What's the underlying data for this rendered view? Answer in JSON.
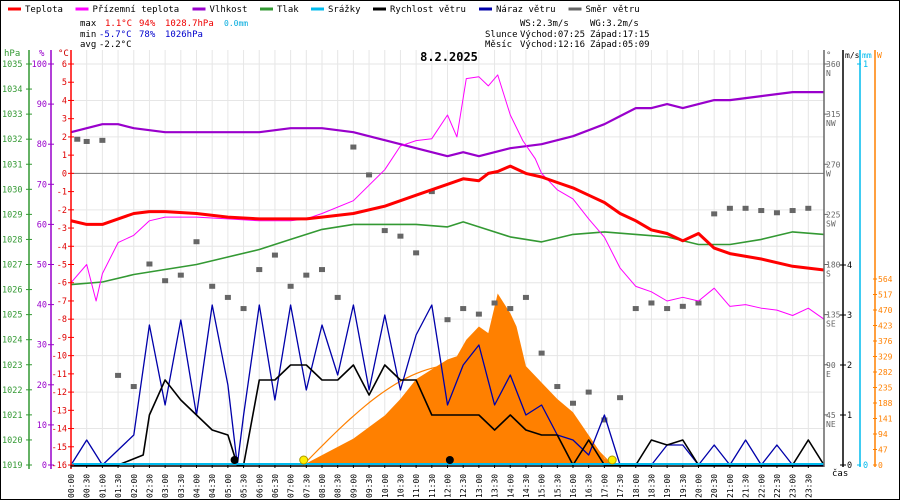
{
  "legend": [
    {
      "label": "Teplota",
      "color": "#ff0000"
    },
    {
      "label": "Přízemní teplota",
      "color": "#ff00ff"
    },
    {
      "label": "Vlhkost",
      "color": "#9900cc"
    },
    {
      "label": "Tlak",
      "color": "#339933"
    },
    {
      "label": "Srážky",
      "color": "#00bbee"
    },
    {
      "label": "Rychlost větru",
      "color": "#000000"
    },
    {
      "label": "Náraz větru",
      "color": "#0000aa"
    },
    {
      "label": "Směr větru",
      "color": "#666666"
    }
  ],
  "stats": {
    "max_label": "max",
    "max_temp": "1.1°C",
    "max_hum": "94%",
    "max_press": "1028.7hPa",
    "max_rain": "0.0mm",
    "min_label": "min",
    "min_temp": "-5.7°C",
    "min_hum": "78%",
    "min_press": "1026hPa",
    "avg_label": "avg",
    "avg_temp": "-2.2°C"
  },
  "wind_info": {
    "ws": "WS:2.3m/s",
    "wg": "WG:3.2m/s"
  },
  "sun": {
    "label": "Slunce",
    "rise": "Východ:07:25",
    "set": "Západ:17:15"
  },
  "moon": {
    "label": "Měsíc",
    "rise": "Východ:12:16",
    "set": "Západ:05:09"
  },
  "colors": {
    "temp": "#ff0000",
    "feels": "#ff00ff",
    "hum": "#9900cc",
    "press": "#339933",
    "rain": "#00bbee",
    "wind": "#000000",
    "gust": "#0000aa",
    "dir": "#666666",
    "solar": "#ff8000",
    "grid": "#e6e6e6"
  },
  "chart_data": {
    "type": "line",
    "title": "8.2.2025",
    "xlabel": "čas",
    "x_ticks": [
      "00:00",
      "00:30",
      "01:00",
      "01:30",
      "02:00",
      "02:30",
      "03:00",
      "03:30",
      "04:00",
      "04:30",
      "05:00",
      "05:30",
      "06:00",
      "06:30",
      "07:00",
      "07:30",
      "08:00",
      "08:30",
      "09:00",
      "09:30",
      "10:00",
      "10:30",
      "11:00",
      "11:30",
      "12:00",
      "12:30",
      "13:00",
      "13:30",
      "14:00",
      "14:30",
      "15:00",
      "15:30",
      "16:00",
      "16:30",
      "17:00",
      "17:30",
      "18:00",
      "18:30",
      "19:00",
      "19:30",
      "20:00",
      "20:30",
      "21:00",
      "21:30",
      "22:00",
      "22:30",
      "23:00",
      "23:30"
    ],
    "axes": {
      "pressure": {
        "unit": "hPa",
        "range": [
          1019,
          1035
        ],
        "ticks": [
          "1035",
          "1034",
          "1033",
          "1032",
          "1031",
          "1030",
          "1029",
          "1028",
          "1027",
          "1026",
          "1025",
          "1024",
          "1023",
          "1022",
          "1021",
          "1020",
          "1019"
        ]
      },
      "humidity": {
        "unit": "%",
        "range": [
          0,
          100
        ],
        "ticks": [
          "100",
          "90",
          "80",
          "70",
          "60",
          "50",
          "40",
          "30",
          "20",
          "10",
          "0"
        ]
      },
      "temperature": {
        "unit": "°C",
        "range": [
          -16,
          6
        ],
        "ticks": [
          "6",
          "5",
          "4",
          "3",
          "2",
          "1",
          "0",
          "-1",
          "-2",
          "-3",
          "-4",
          "-5",
          "-6",
          "-7",
          "-8",
          "-9",
          "-10",
          "-11",
          "-12",
          "-13",
          "-14",
          "-15",
          "-16"
        ]
      },
      "direction": {
        "unit": "°",
        "range": [
          0,
          360
        ],
        "ticks": [
          {
            "v": "360",
            "c": "N"
          },
          {
            "v": "315",
            "c": "NW"
          },
          {
            "v": "270",
            "c": "W"
          },
          {
            "v": "225",
            "c": "SW"
          },
          {
            "v": "180",
            "c": "S"
          },
          {
            "v": "135",
            "c": "SE"
          },
          {
            "v": "90",
            "c": "E"
          },
          {
            "v": "45",
            "c": "NE"
          }
        ]
      },
      "wind": {
        "unit": "m/s",
        "range": [
          0,
          4
        ],
        "ticks": [
          "4",
          "3",
          "2",
          "1",
          "0"
        ]
      },
      "rain": {
        "unit": "mm",
        "range": [
          0,
          1
        ],
        "ticks": [
          "1",
          "0"
        ]
      },
      "solar": {
        "unit": "W",
        "range": [
          0,
          564
        ],
        "ticks": [
          "564",
          "517",
          "470",
          "423",
          "376",
          "329",
          "282",
          "235",
          "188",
          "141",
          "94",
          "47",
          "0"
        ]
      }
    },
    "series": [
      {
        "name": "Teplota",
        "axis": "temperature",
        "x_hours": [
          0,
          0.5,
          1,
          1.5,
          2,
          2.5,
          3,
          4,
          5,
          6,
          7,
          7.5,
          8,
          9,
          10,
          11,
          12,
          12.5,
          13,
          13.3,
          13.6,
          14,
          14.5,
          15,
          15.5,
          16,
          16.5,
          17,
          17.5,
          18,
          18.5,
          19,
          19.5,
          20,
          20.5,
          21,
          22,
          23,
          24
        ],
        "values": [
          -2.6,
          -2.8,
          -2.8,
          -2.5,
          -2.2,
          -2.1,
          -2.1,
          -2.2,
          -2.4,
          -2.5,
          -2.5,
          -2.5,
          -2.4,
          -2.2,
          -1.8,
          -1.2,
          -0.6,
          -0.3,
          -0.4,
          0.0,
          0.1,
          0.4,
          0.0,
          -0.2,
          -0.5,
          -0.8,
          -1.2,
          -1.6,
          -2.2,
          -2.6,
          -3.1,
          -3.3,
          -3.7,
          -3.3,
          -4.1,
          -4.4,
          -4.7,
          -5.1,
          -5.3
        ]
      },
      {
        "name": "Přízemní teplota",
        "axis": "temperature",
        "x_hours": [
          0,
          0.5,
          0.8,
          1,
          1.5,
          2,
          2.5,
          3,
          4,
          5,
          6,
          7,
          7.5,
          8,
          9,
          10,
          10.5,
          11,
          11.5,
          12,
          12.3,
          12.6,
          13,
          13.3,
          13.6,
          14,
          14.4,
          14.8,
          15,
          15.5,
          16,
          16.5,
          17,
          17.5,
          18,
          18.5,
          19,
          19.5,
          20,
          20.5,
          21,
          21.5,
          22,
          22.5,
          23,
          23.5,
          24
        ],
        "values": [
          -6.0,
          -5.0,
          -7.0,
          -5.5,
          -3.8,
          -3.4,
          -2.6,
          -2.4,
          -2.4,
          -2.5,
          -2.6,
          -2.6,
          -2.5,
          -2.2,
          -1.5,
          0.2,
          1.5,
          1.8,
          1.9,
          3.2,
          2.0,
          5.2,
          5.3,
          4.8,
          5.4,
          3.2,
          1.8,
          0.8,
          0.0,
          -0.9,
          -1.4,
          -2.5,
          -3.5,
          -5.2,
          -6.2,
          -6.5,
          -7.0,
          -6.8,
          -7.0,
          -6.3,
          -7.3,
          -7.2,
          -7.4,
          -7.5,
          -7.8,
          -7.4,
          -8.0
        ]
      },
      {
        "name": "Vlhkost",
        "axis": "humidity",
        "x_hours": [
          0,
          0.5,
          1,
          1.5,
          2,
          3,
          4,
          5,
          6,
          7,
          8,
          9,
          10,
          11,
          11.5,
          12,
          12.5,
          13,
          13.5,
          14,
          15,
          16,
          17,
          17.5,
          18,
          18.5,
          19,
          19.5,
          20,
          20.5,
          21,
          22,
          23,
          24
        ],
        "values": [
          83,
          84,
          85,
          85,
          84,
          83,
          83,
          83,
          83,
          84,
          84,
          83,
          81,
          79,
          78,
          77,
          78,
          77,
          78,
          79,
          80,
          82,
          85,
          87,
          89,
          89,
          90,
          89,
          90,
          91,
          91,
          92,
          93,
          93
        ]
      },
      {
        "name": "Tlak",
        "axis": "pressure",
        "x_hours": [
          0,
          1,
          2,
          3,
          4,
          5,
          6,
          7,
          8,
          9,
          10,
          11,
          12,
          12.5,
          13,
          14,
          15,
          16,
          17,
          18,
          19,
          20,
          21,
          22,
          23,
          24
        ],
        "values": [
          1026.2,
          1026.3,
          1026.6,
          1026.8,
          1027.0,
          1027.3,
          1027.6,
          1028.0,
          1028.4,
          1028.6,
          1028.6,
          1028.6,
          1028.5,
          1028.7,
          1028.5,
          1028.1,
          1027.9,
          1028.2,
          1028.3,
          1028.2,
          1028.1,
          1027.8,
          1027.8,
          1028.0,
          1028.3,
          1028.2
        ]
      },
      {
        "name": "Srážky",
        "axis": "rain",
        "x_hours": [
          0,
          24
        ],
        "values": [
          0,
          0
        ]
      },
      {
        "name": "Rychlost větru",
        "axis": "wind",
        "x_hours": [
          0,
          1.5,
          2.3,
          2.5,
          3,
          3.5,
          4,
          4.5,
          5,
          5.3,
          5.5,
          6,
          6.5,
          7,
          7.5,
          8,
          8.5,
          9,
          9.5,
          10,
          10.5,
          11,
          11.5,
          12,
          12.5,
          13,
          13.5,
          14,
          14.5,
          15,
          15.5,
          16,
          16.5,
          17,
          17.5,
          18,
          18.5,
          19,
          19.5,
          20,
          20.5,
          21,
          21.5,
          22,
          22.5,
          23,
          23.5,
          24
        ],
        "values": [
          0,
          0,
          0.2,
          1.0,
          1.7,
          1.3,
          1.0,
          0.7,
          0.6,
          0.0,
          0.0,
          1.7,
          1.7,
          2.0,
          2.0,
          1.7,
          1.7,
          2.0,
          1.4,
          2.0,
          1.7,
          1.7,
          1.0,
          1.0,
          1.0,
          1.0,
          0.7,
          1.0,
          0.7,
          0.6,
          0.6,
          0.0,
          0.5,
          0.0,
          0.0,
          0.0,
          0.5,
          0.4,
          0.5,
          0.0,
          0.0,
          0.0,
          0.0,
          0.0,
          0.0,
          0.0,
          0.5,
          0.0
        ]
      },
      {
        "name": "Náraz větru",
        "axis": "wind",
        "x_hours": [
          0,
          0.5,
          1,
          1.5,
          2,
          2.5,
          3,
          3.5,
          4,
          4.5,
          5,
          5.3,
          5.5,
          6,
          6.5,
          7,
          7.5,
          8,
          8.5,
          9,
          9.5,
          10,
          10.5,
          11,
          11.5,
          12,
          12.5,
          13,
          13.5,
          14,
          14.5,
          15,
          15.5,
          16,
          16.5,
          17,
          17.5,
          18,
          18.5,
          19,
          19.5,
          20,
          20.5,
          21,
          21.5,
          22,
          22.5,
          23,
          23.5,
          24
        ],
        "values": [
          0,
          0.5,
          0,
          0.3,
          0.6,
          2.8,
          1.2,
          2.9,
          1.0,
          3.2,
          1.6,
          0,
          1.0,
          3.2,
          1.3,
          3.2,
          1.5,
          2.8,
          1.8,
          3.2,
          1.5,
          3.0,
          1.5,
          2.6,
          3.2,
          1.2,
          2.0,
          2.4,
          1.2,
          1.8,
          1.0,
          1.2,
          0.6,
          0.5,
          0.2,
          1.0,
          0,
          0,
          0,
          0.4,
          0.4,
          0,
          0.4,
          0,
          0.5,
          0,
          0.4,
          0,
          0,
          0
        ]
      },
      {
        "name": "Solar",
        "axis": "solar",
        "x_hours": [
          7.4,
          8,
          9,
          10,
          10.5,
          11,
          11.5,
          12,
          12.3,
          12.6,
          13,
          13.3,
          13.6,
          14,
          14.2,
          14.5,
          15,
          15.5,
          16,
          16.5,
          17,
          17.3
        ],
        "values": [
          0,
          30,
          80,
          150,
          200,
          260,
          290,
          320,
          330,
          380,
          420,
          400,
          520,
          460,
          420,
          300,
          250,
          200,
          160,
          90,
          20,
          0
        ]
      }
    ],
    "wind_direction_points": {
      "axis": "direction",
      "x_hours": [
        0.2,
        0.5,
        1,
        1.5,
        2,
        2.5,
        3,
        3.5,
        4,
        4.5,
        5,
        5.5,
        6,
        6.5,
        7,
        7.5,
        8,
        8.5,
        9,
        9.5,
        10,
        10.5,
        11,
        11.5,
        12,
        12.5,
        13,
        13.5,
        14,
        14.5,
        15,
        15.5,
        16,
        16.5,
        17,
        17.5,
        18,
        18.5,
        19,
        19.5,
        20,
        20.5,
        21,
        21.5,
        22,
        22.5,
        23,
        23.5
      ],
      "values": [
        292,
        290,
        291,
        80,
        70,
        180,
        165,
        170,
        200,
        160,
        150,
        140,
        175,
        188,
        160,
        170,
        175,
        150,
        285,
        260,
        210,
        205,
        190,
        245,
        130,
        140,
        135,
        145,
        140,
        150,
        100,
        70,
        55,
        65,
        40,
        60,
        140,
        145,
        140,
        142,
        145,
        225,
        230,
        230,
        228,
        226,
        228,
        230
      ]
    },
    "annotations": {
      "sunrise_marker": "07:25",
      "sunset_marker": "17:15",
      "moonrise_marker": "12:16",
      "moonset_marker": "05:09"
    }
  }
}
